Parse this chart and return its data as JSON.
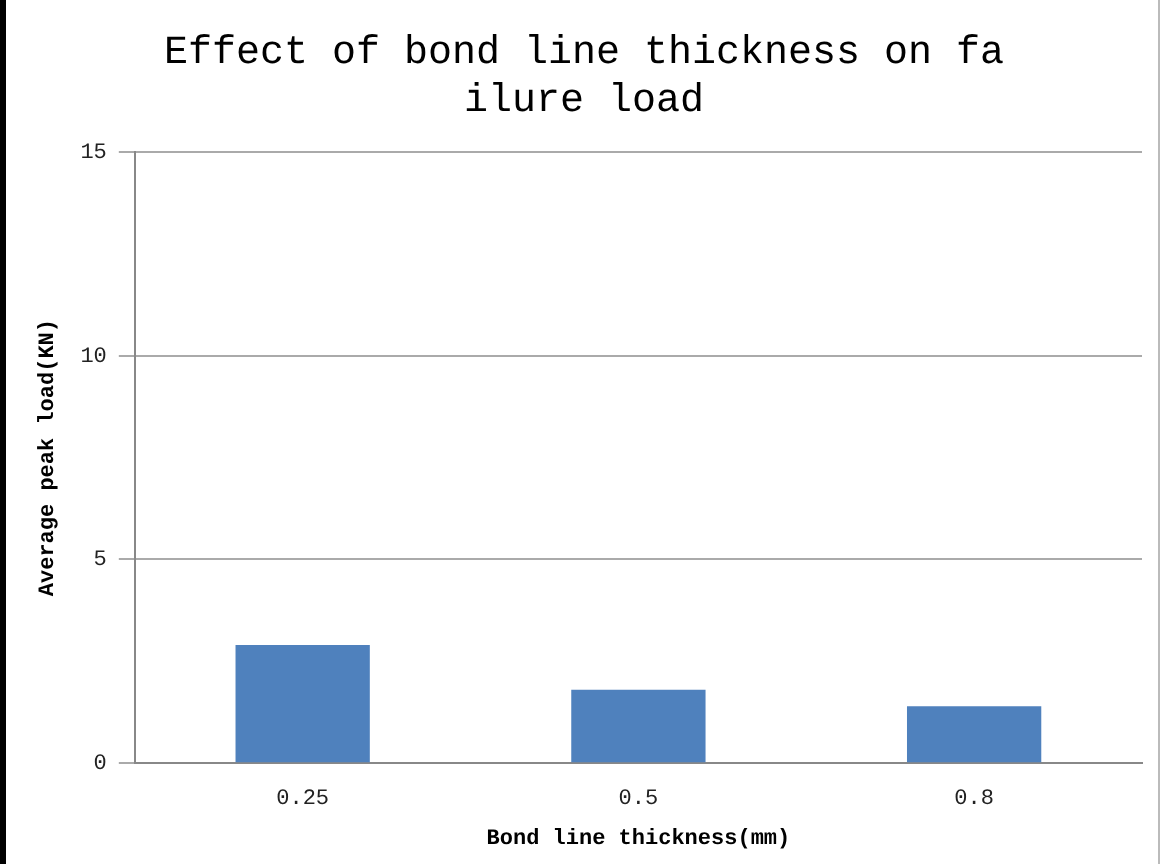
{
  "chart_data": {
    "type": "bar",
    "title": "Effect of bond line thickness on failure load",
    "xlabel": "Bond line thickness(mm)",
    "ylabel": "Average peak load(KN)",
    "categories": [
      "0.25",
      "0.5",
      "0.8"
    ],
    "values": [
      2.9,
      1.8,
      1.4
    ],
    "color": "#4f81bd",
    "ylim": [
      0,
      15
    ],
    "yticks": [
      0,
      5,
      10,
      15
    ],
    "grid": "y",
    "legend": false
  }
}
